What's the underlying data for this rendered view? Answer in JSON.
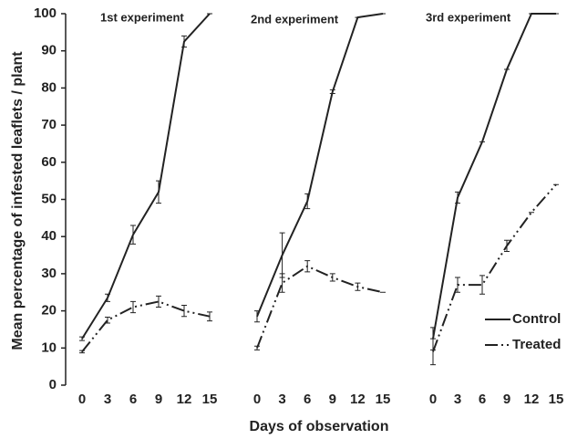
{
  "chart_data": {
    "type": "line",
    "ylabel": "Mean percentage of  infested leaflets / plant",
    "xlabel": "Days of observation",
    "ylim": [
      0,
      100
    ],
    "yticks": [
      0,
      10,
      20,
      30,
      40,
      50,
      60,
      70,
      80,
      90,
      100
    ],
    "panels": [
      {
        "title": "1st experiment",
        "x": [
          0,
          3,
          6,
          9,
          12,
          15
        ],
        "xlim": [
          0,
          15
        ],
        "series": [
          {
            "name": "Control",
            "color": "#222222",
            "style": "solid",
            "values": [
              12.5,
              23.5,
              40.5,
              52,
              92.5,
              100
            ],
            "errors": [
              0.5,
              1,
              2.5,
              3,
              1.5,
              0
            ]
          },
          {
            "name": "Treated",
            "color": "#222222",
            "style": "dashdot",
            "values": [
              9,
              17.5,
              21,
              22.5,
              20,
              18.5
            ],
            "errors": [
              0.3,
              0.8,
              1.5,
              1.5,
              1.5,
              1.2
            ]
          }
        ]
      },
      {
        "title": "2nd experiment",
        "x": [
          0,
          3,
          6,
          9,
          12,
          15
        ],
        "xlim": [
          0,
          15
        ],
        "series": [
          {
            "name": "Control",
            "color": "#222222",
            "style": "solid",
            "values": [
              18.5,
              35,
              49.5,
              79,
              99,
              100
            ],
            "errors": [
              1.5,
              6,
              2,
              0.5,
              0,
              0
            ]
          },
          {
            "name": "Treated",
            "color": "#222222",
            "style": "dashdot",
            "values": [
              10,
              27.5,
              32,
              29,
              26.5,
              25
            ],
            "errors": [
              0.5,
              2.5,
              1.5,
              1,
              1,
              0
            ]
          }
        ]
      },
      {
        "title": "3rd experiment",
        "x": [
          0,
          3,
          6,
          9,
          12,
          15
        ],
        "xlim": [
          0,
          15
        ],
        "series": [
          {
            "name": "Control",
            "color": "#222222",
            "style": "solid",
            "values": [
              12.5,
              50.5,
              65.5,
              85,
              100,
              100
            ],
            "errors": [
              3,
              1.5,
              0,
              0,
              0,
              0
            ]
          },
          {
            "name": "Treated",
            "color": "#222222",
            "style": "dashdot",
            "values": [
              9,
              27,
              27,
              37.5,
              46.5,
              54
            ],
            "errors": [
              3.5,
              2,
              2.5,
              1.5,
              0,
              0
            ]
          }
        ]
      }
    ]
  }
}
